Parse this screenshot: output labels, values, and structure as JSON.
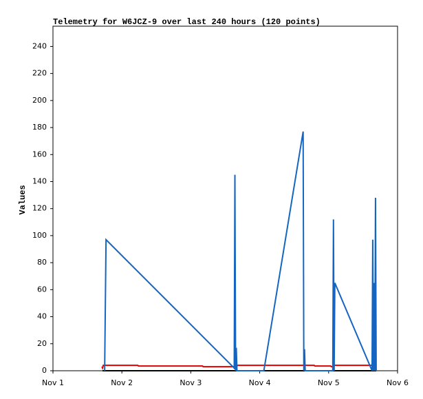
{
  "chart_data": {
    "type": "line",
    "title": "Telemetry for W6JCZ-9 over last 240 hours (120 points)",
    "y_label": "Values",
    "xlim": [
      1,
      6
    ],
    "xticks": [
      {
        "value": 1,
        "label": "Nov 1"
      },
      {
        "value": 2,
        "label": "Nov 2"
      },
      {
        "value": 3,
        "label": "Nov 3"
      },
      {
        "value": 4,
        "label": "Nov 4"
      },
      {
        "value": 5,
        "label": "Nov 5"
      },
      {
        "value": 6,
        "label": "Nov 6"
      }
    ],
    "ylim": [
      0,
      255
    ],
    "yticks": [
      0,
      20,
      40,
      60,
      80,
      100,
      120,
      140,
      160,
      180,
      200,
      220,
      240
    ],
    "series": [
      {
        "color": "#000000",
        "x": [
          1.72,
          5.69
        ],
        "values": [
          0,
          0
        ]
      },
      {
        "color": "#e00000",
        "x": [
          1.71,
          1.72,
          1.73,
          2.23,
          2.24,
          3.17,
          3.18,
          3.62,
          3.63,
          3.68,
          4.79,
          4.8,
          5.03,
          5.04,
          5.06,
          5.07,
          5.67
        ],
        "values": [
          3,
          2,
          4,
          4,
          3.5,
          3.5,
          3,
          3,
          2,
          4,
          4,
          3.5,
          3.5,
          3,
          3,
          4,
          4
        ]
      },
      {
        "color": "#1565c0",
        "x": [
          1.75,
          1.76,
          1.77,
          3.63,
          3.64,
          3.65,
          3.66,
          3.67,
          4.06,
          4.63,
          4.64,
          4.65,
          4.66,
          5.06,
          5.07,
          5.08,
          5.09,
          5.63,
          5.64,
          5.65,
          5.66,
          5.67,
          5.68,
          5.69
        ],
        "values": [
          0,
          48,
          97,
          2,
          145,
          0,
          17,
          0,
          0,
          177,
          0,
          16,
          0,
          0,
          112,
          0,
          65,
          0,
          97,
          0,
          65,
          0,
          128,
          0
        ]
      }
    ]
  }
}
